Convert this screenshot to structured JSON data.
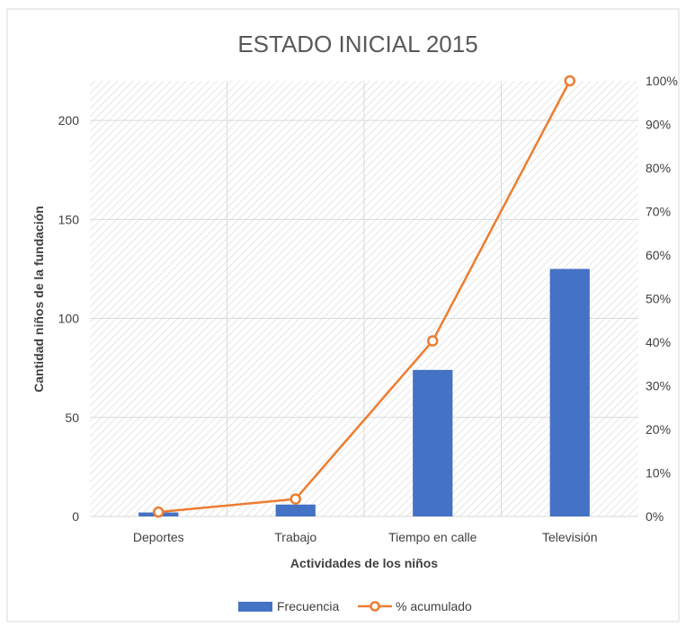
{
  "chart_data": {
    "type": "bar",
    "title": "ESTADO INICIAL 2015",
    "xlabel": "Actividades de los niños",
    "ylabel": "Cantidad niños de la fundación",
    "categories": [
      "Deportes",
      "Trabajo",
      "Tiempo en calle",
      "Televisión"
    ],
    "ylim": [
      0,
      220
    ],
    "yticks": [
      0,
      50,
      100,
      150,
      200
    ],
    "y2lim": [
      0,
      100
    ],
    "y2ticks": [
      "0%",
      "10%",
      "20%",
      "30%",
      "40%",
      "50%",
      "60%",
      "70%",
      "80%",
      "90%",
      "100%"
    ],
    "series": [
      {
        "name": "Frecuencia",
        "kind": "bar",
        "axis": "left",
        "color": "#4472C4",
        "values": [
          2,
          6,
          74,
          125
        ]
      },
      {
        "name": "% acumulado",
        "kind": "line",
        "axis": "right",
        "color": "#ED7D31",
        "values": [
          1,
          4,
          40.3,
          100
        ]
      }
    ],
    "grid": true,
    "legend": "bottom"
  }
}
